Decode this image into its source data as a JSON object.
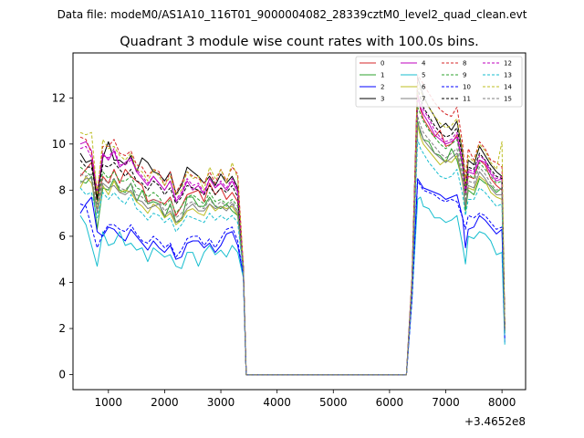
{
  "figure": {
    "suptitle": "Data file: modeM0/AS1A10_116T01_9000004082_28339cztM0_level2_quad_clean.evt"
  },
  "chart_data": {
    "type": "line",
    "title": "Quadrant 3 module wise count rates with 100.0s bins.",
    "xlabel": "",
    "ylabel": "",
    "x_offset_label": "+3.4652e8",
    "xlim": [
      370,
      8420
    ],
    "ylim": [
      -0.65,
      13.95
    ],
    "xticks": [
      1000,
      2000,
      3000,
      4000,
      5000,
      6000,
      7000,
      8000
    ],
    "yticks": [
      0,
      2,
      4,
      6,
      8,
      10,
      12
    ],
    "legend_position": "top-right",
    "x": [
      500,
      600,
      700,
      800,
      900,
      1000,
      1100,
      1200,
      1300,
      1400,
      1500,
      1600,
      1700,
      1800,
      1900,
      2000,
      2100,
      2200,
      2300,
      2400,
      2500,
      2600,
      2700,
      2800,
      2900,
      3000,
      3100,
      3200,
      3300,
      3400,
      3450,
      3550,
      4000,
      5000,
      6000,
      6300,
      6400,
      6500,
      6550,
      6600,
      6700,
      6800,
      6900,
      7000,
      7100,
      7200,
      7300,
      7350,
      7400,
      7500,
      7600,
      7700,
      7800,
      7900,
      8000,
      8050
    ],
    "series": [
      {
        "name": "0",
        "color": "#d62728",
        "dash": "solid",
        "values": [
          8.6,
          8.9,
          9.2,
          7.5,
          8.6,
          8.3,
          8.9,
          8.3,
          8.9,
          8.6,
          8.4,
          8.2,
          7.5,
          7.6,
          7.5,
          7.4,
          7.7,
          6.9,
          7.3,
          7.8,
          7.9,
          8.0,
          7.5,
          8.3,
          7.8,
          8.1,
          7.6,
          7.9,
          7.5,
          4.6,
          0.0,
          0.0,
          0.0,
          0.0,
          0.0,
          0.0,
          3.8,
          12.2,
          11.5,
          11.1,
          10.7,
          10.3,
          10.6,
          9.9,
          10.0,
          10.4,
          9.0,
          7.8,
          8.6,
          8.5,
          9.3,
          9.1,
          8.5,
          8.2,
          8.0,
          1.8
        ]
      },
      {
        "name": "1",
        "color": "#2ca02c",
        "dash": "solid",
        "values": [
          8.4,
          8.3,
          8.6,
          6.3,
          8.1,
          8.0,
          8.5,
          8.0,
          7.9,
          8.3,
          7.5,
          8.0,
          7.4,
          7.5,
          7.4,
          6.8,
          7.4,
          6.6,
          6.7,
          7.7,
          7.7,
          7.3,
          7.3,
          7.7,
          7.3,
          7.2,
          7.4,
          7.1,
          6.9,
          4.5,
          0.0,
          0.0,
          0.0,
          0.0,
          0.0,
          0.0,
          3.7,
          11.0,
          10.5,
          10.2,
          10.1,
          9.6,
          9.5,
          9.2,
          9.8,
          9.3,
          8.4,
          7.1,
          8.0,
          7.8,
          8.5,
          8.3,
          8.2,
          7.9,
          8.1,
          1.9
        ]
      },
      {
        "name": "2",
        "color": "#0000ff",
        "dash": "solid",
        "values": [
          7.0,
          7.4,
          7.7,
          6.2,
          6.0,
          6.4,
          6.3,
          6.0,
          5.8,
          6.3,
          6.0,
          5.7,
          5.4,
          5.8,
          5.5,
          5.3,
          5.6,
          5.0,
          5.1,
          5.7,
          5.8,
          5.8,
          5.5,
          5.7,
          5.3,
          5.6,
          6.1,
          6.2,
          5.6,
          4.3,
          0.0,
          0.0,
          0.0,
          0.0,
          0.0,
          0.0,
          3.3,
          8.5,
          8.3,
          8.1,
          8.0,
          7.9,
          7.8,
          7.6,
          7.7,
          7.8,
          6.8,
          5.5,
          6.3,
          6.4,
          6.9,
          6.7,
          6.4,
          6.1,
          6.3,
          1.4
        ]
      },
      {
        "name": "3",
        "color": "#000000",
        "dash": "solid",
        "values": [
          9.6,
          9.2,
          9.3,
          7.6,
          9.4,
          10.1,
          9.3,
          9.3,
          9.1,
          9.5,
          8.8,
          9.4,
          9.2,
          8.8,
          8.7,
          8.4,
          8.8,
          7.8,
          8.2,
          9.0,
          8.8,
          8.6,
          8.3,
          8.6,
          8.2,
          8.7,
          8.3,
          8.6,
          8.1,
          4.7,
          0.0,
          0.0,
          0.0,
          0.0,
          0.0,
          0.0,
          4.2,
          12.9,
          12.5,
          12.1,
          11.6,
          11.2,
          10.7,
          10.9,
          10.6,
          11.0,
          9.6,
          8.1,
          9.3,
          9.1,
          9.9,
          9.5,
          9.1,
          8.8,
          8.6,
          2.2
        ]
      },
      {
        "name": "4",
        "color": "#bf00bf",
        "dash": "solid",
        "values": [
          10.0,
          10.1,
          9.7,
          7.8,
          9.6,
          9.3,
          9.7,
          9.0,
          9.2,
          9.4,
          8.8,
          8.5,
          8.2,
          8.6,
          8.3,
          8.0,
          8.4,
          7.5,
          7.8,
          8.4,
          8.0,
          8.2,
          7.8,
          8.5,
          8.1,
          8.3,
          8.0,
          8.4,
          7.9,
          4.6,
          0.0,
          0.0,
          0.0,
          0.0,
          0.0,
          0.0,
          4.0,
          12.0,
          11.6,
          11.3,
          10.9,
          10.4,
          10.2,
          10.0,
          10.1,
          10.3,
          9.1,
          7.9,
          8.8,
          8.7,
          9.3,
          9.2,
          8.7,
          8.4,
          8.5,
          2.0
        ]
      },
      {
        "name": "5",
        "color": "#17becf",
        "dash": "solid",
        "values": [
          6.9,
          6.5,
          5.6,
          4.7,
          6.2,
          5.6,
          5.7,
          6.2,
          5.6,
          5.7,
          5.4,
          5.5,
          4.9,
          5.5,
          5.3,
          5.1,
          5.2,
          4.7,
          4.6,
          5.3,
          5.3,
          4.7,
          5.3,
          5.6,
          5.2,
          5.4,
          5.1,
          5.6,
          5.3,
          4.2,
          0.0,
          0.0,
          0.0,
          0.0,
          0.0,
          0.0,
          3.3,
          7.6,
          7.7,
          7.3,
          7.2,
          6.8,
          6.8,
          6.6,
          6.7,
          6.9,
          5.6,
          4.8,
          6.0,
          5.9,
          6.2,
          6.1,
          5.8,
          5.2,
          5.3,
          1.3
        ]
      },
      {
        "name": "6",
        "color": "#bcbd22",
        "dash": "solid",
        "values": [
          8.1,
          8.6,
          8.3,
          7.2,
          8.2,
          7.8,
          8.4,
          7.9,
          8.0,
          7.9,
          7.5,
          7.3,
          7.0,
          7.4,
          7.2,
          6.8,
          7.0,
          6.5,
          6.7,
          7.1,
          7.2,
          7.0,
          6.9,
          7.4,
          7.1,
          7.3,
          7.2,
          7.3,
          6.9,
          4.5,
          0.0,
          0.0,
          0.0,
          0.0,
          0.0,
          0.0,
          3.7,
          10.8,
          10.3,
          10.0,
          9.7,
          9.4,
          9.1,
          9.3,
          9.2,
          9.5,
          8.3,
          7.4,
          8.1,
          8.0,
          8.6,
          8.4,
          7.9,
          7.7,
          7.6,
          1.8
        ]
      },
      {
        "name": "7",
        "color": "#7f7f7f",
        "dash": "solid",
        "values": [
          8.3,
          8.5,
          8.5,
          7.0,
          8.3,
          8.1,
          8.2,
          7.9,
          7.8,
          8.0,
          7.6,
          7.5,
          7.2,
          7.3,
          7.4,
          6.9,
          7.1,
          6.6,
          6.8,
          7.2,
          7.4,
          7.1,
          7.1,
          7.4,
          7.2,
          7.3,
          7.1,
          7.4,
          7.0,
          4.5,
          0.0,
          0.0,
          0.0,
          0.0,
          0.0,
          0.0,
          3.7,
          10.9,
          10.6,
          10.2,
          9.9,
          9.6,
          9.4,
          9.2,
          9.4,
          9.6,
          8.4,
          7.3,
          8.2,
          8.1,
          8.8,
          8.5,
          8.1,
          7.8,
          7.8,
          1.9
        ]
      },
      {
        "name": "8",
        "color": "#d62728",
        "dash": "dashed",
        "values": [
          10.3,
          10.2,
          9.6,
          8.0,
          9.9,
          9.9,
          10.2,
          9.6,
          9.5,
          9.7,
          9.1,
          9.0,
          8.6,
          8.9,
          8.8,
          8.2,
          8.8,
          7.9,
          8.3,
          8.8,
          8.6,
          8.5,
          8.3,
          8.8,
          8.3,
          8.9,
          8.4,
          9.0,
          8.7,
          4.7,
          0.0,
          0.0,
          0.0,
          0.0,
          0.0,
          0.0,
          4.2,
          13.0,
          12.8,
          12.6,
          12.2,
          11.8,
          11.5,
          11.3,
          11.2,
          11.6,
          10.0,
          8.5,
          9.8,
          9.3,
          10.1,
          9.8,
          9.3,
          9.2,
          9.0,
          2.2
        ]
      },
      {
        "name": "9",
        "color": "#2ca02c",
        "dash": "dashed",
        "values": [
          9.0,
          8.8,
          8.6,
          7.4,
          8.8,
          8.5,
          8.8,
          8.4,
          8.4,
          8.6,
          8.1,
          8.0,
          7.7,
          7.9,
          7.7,
          7.3,
          7.6,
          7.0,
          7.3,
          7.7,
          7.8,
          7.6,
          7.4,
          7.9,
          7.5,
          7.6,
          7.4,
          7.6,
          7.3,
          4.5,
          0.0,
          0.0,
          0.0,
          0.0,
          0.0,
          0.0,
          3.9,
          11.6,
          11.3,
          11.0,
          10.6,
          10.3,
          10.0,
          9.8,
          10.0,
          10.2,
          8.9,
          7.8,
          8.7,
          8.5,
          9.2,
          8.9,
          8.6,
          8.3,
          8.4,
          2.0
        ]
      },
      {
        "name": "10",
        "color": "#0000ff",
        "dash": "dashed",
        "values": [
          7.4,
          7.3,
          6.4,
          5.5,
          6.1,
          6.5,
          6.5,
          6.3,
          6.2,
          6.5,
          6.1,
          5.8,
          5.7,
          6.0,
          5.8,
          5.5,
          5.7,
          5.1,
          5.4,
          5.9,
          6.0,
          6.0,
          5.6,
          5.9,
          5.5,
          5.9,
          6.3,
          6.4,
          5.8,
          4.3,
          0.0,
          0.0,
          0.0,
          0.0,
          0.0,
          0.0,
          3.3,
          8.4,
          8.2,
          8.0,
          7.9,
          7.8,
          7.6,
          7.5,
          7.6,
          7.5,
          6.8,
          6.3,
          6.9,
          6.8,
          7.0,
          6.9,
          6.6,
          6.3,
          6.4,
          1.5
        ]
      },
      {
        "name": "11",
        "color": "#000000",
        "dash": "dashed",
        "values": [
          9.3,
          9.0,
          9.0,
          7.7,
          9.1,
          9.0,
          9.2,
          8.9,
          8.6,
          8.9,
          8.4,
          8.3,
          8.0,
          8.4,
          8.2,
          7.8,
          8.1,
          7.4,
          7.7,
          8.2,
          8.1,
          8.0,
          7.8,
          8.2,
          7.8,
          8.1,
          7.9,
          8.2,
          7.7,
          4.6,
          0.0,
          0.0,
          0.0,
          0.0,
          0.0,
          0.0,
          4.0,
          12.4,
          12.0,
          11.6,
          11.2,
          10.8,
          10.5,
          10.3,
          10.4,
          10.7,
          9.4,
          8.0,
          9.0,
          8.9,
          9.6,
          9.3,
          8.9,
          8.6,
          8.5,
          2.1
        ]
      },
      {
        "name": "12",
        "color": "#bf00bf",
        "dash": "dashed",
        "values": [
          9.8,
          9.9,
          9.4,
          7.9,
          9.5,
          9.4,
          9.8,
          9.1,
          9.1,
          9.3,
          8.9,
          8.6,
          8.3,
          8.6,
          8.3,
          8.0,
          8.4,
          7.6,
          7.9,
          8.5,
          8.2,
          8.3,
          7.9,
          8.5,
          8.1,
          8.4,
          8.1,
          8.5,
          8.0,
          4.6,
          0.0,
          0.0,
          0.0,
          0.0,
          0.0,
          0.0,
          4.0,
          12.1,
          11.8,
          11.5,
          11.1,
          10.6,
          10.3,
          10.1,
          10.2,
          10.5,
          9.2,
          7.9,
          8.9,
          8.8,
          9.5,
          9.3,
          8.8,
          8.5,
          8.6,
          2.0
        ]
      },
      {
        "name": "13",
        "color": "#17becf",
        "dash": "dashed",
        "values": [
          8.1,
          7.8,
          7.9,
          6.8,
          7.9,
          7.6,
          7.9,
          7.6,
          7.4,
          7.8,
          7.2,
          7.0,
          6.7,
          7.0,
          6.9,
          6.6,
          6.8,
          6.2,
          6.5,
          6.9,
          6.8,
          6.7,
          6.6,
          7.0,
          6.7,
          6.9,
          6.7,
          6.9,
          6.6,
          4.4,
          0.0,
          0.0,
          0.0,
          0.0,
          0.0,
          0.0,
          3.6,
          10.2,
          9.8,
          9.6,
          9.2,
          8.9,
          8.6,
          8.5,
          8.6,
          8.9,
          7.8,
          6.9,
          7.6,
          7.6,
          8.1,
          7.9,
          7.6,
          7.3,
          7.4,
          1.7
        ]
      },
      {
        "name": "14",
        "color": "#bcbd22",
        "dash": "dashed",
        "values": [
          10.5,
          10.4,
          10.5,
          7.8,
          10.2,
          9.8,
          9.9,
          9.5,
          9.3,
          9.6,
          8.9,
          8.8,
          8.4,
          8.9,
          8.6,
          8.2,
          8.6,
          7.8,
          8.0,
          8.8,
          8.5,
          8.6,
          8.0,
          9.0,
          8.5,
          8.9,
          8.3,
          9.2,
          8.5,
          4.7,
          0.0,
          0.0,
          0.0,
          0.0,
          0.0,
          0.0,
          4.1,
          12.6,
          12.3,
          12.0,
          11.6,
          11.2,
          10.9,
          10.7,
          10.8,
          11.1,
          9.7,
          8.2,
          9.5,
          9.2,
          10.0,
          9.7,
          9.2,
          8.9,
          10.1,
          2.1
        ]
      },
      {
        "name": "15",
        "color": "#7f7f7f",
        "dash": "dashed",
        "values": [
          8.7,
          8.6,
          8.7,
          7.2,
          8.5,
          8.3,
          8.5,
          8.1,
          8.0,
          8.3,
          7.8,
          7.7,
          7.4,
          7.6,
          7.5,
          7.1,
          7.3,
          6.8,
          7.0,
          7.4,
          7.5,
          7.3,
          7.2,
          7.6,
          7.3,
          7.5,
          7.3,
          7.5,
          7.1,
          4.5,
          0.0,
          0.0,
          0.0,
          0.0,
          0.0,
          0.0,
          3.8,
          11.2,
          10.8,
          10.5,
          10.2,
          9.9,
          9.6,
          9.4,
          9.6,
          9.8,
          8.6,
          7.5,
          8.4,
          8.3,
          9.0,
          8.7,
          8.3,
          8.0,
          8.1,
          1.9
        ]
      }
    ]
  }
}
